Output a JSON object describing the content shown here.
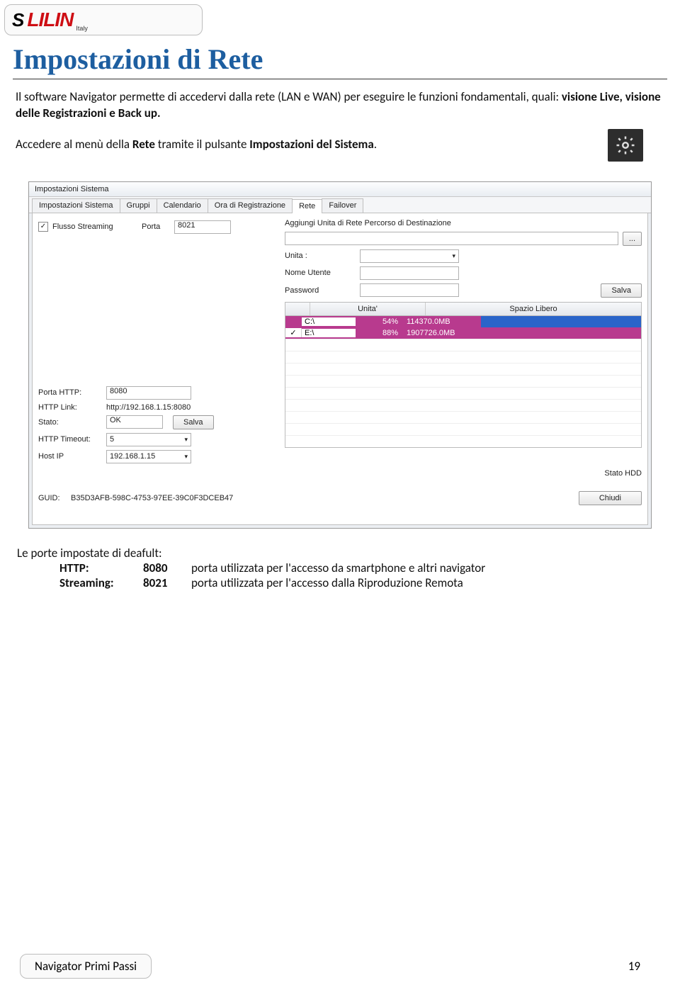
{
  "logo": {
    "brand": "LILIN",
    "country": "Italy"
  },
  "title": "Impostazioni di Rete",
  "intro": "Il software Navigator permette di accedervi dalla rete (LAN e WAN) per eseguire le funzioni fondamentali, quali: ",
  "intro_bold": "visione Live, visione delle Registrazioni e Back up.",
  "instruction_pre": "Accedere al menù della ",
  "instruction_b1": "Rete",
  "instruction_mid": " tramite il pulsante ",
  "instruction_b2": "Impostazioni del Sistema",
  "instruction_post": ".",
  "window": {
    "title": "Impostazioni Sistema",
    "tabs": [
      "Impostazioni Sistema",
      "Gruppi",
      "Calendario",
      "Ora di Registrazione",
      "Rete",
      "Failover"
    ],
    "active_tab": 4,
    "flusso_label": "Flusso Streaming",
    "flusso_checked": true,
    "porta_label": "Porta",
    "porta_value": "8021",
    "aggiungi_label": "Aggiungi Unita di Rete",
    "percorso_label": "Percorso di Destinazione",
    "percorso_value": "",
    "browse_btn": "...",
    "unita_label": "Unita :",
    "nome_utente_label": "Nome Utente",
    "password_label": "Password",
    "salva_btn": "Salva",
    "table": {
      "h1": "Unita'",
      "h2": "Spazio Libero",
      "rows": [
        {
          "chk": false,
          "drive": "C:\\",
          "pct": "54%",
          "size": "114370.0MB",
          "sel": "sel"
        },
        {
          "chk": true,
          "drive": "E:\\",
          "pct": "88%",
          "size": "1907726.0MB",
          "sel": "sel2"
        }
      ]
    },
    "porta_http_label": "Porta HTTP:",
    "porta_http_value": "8080",
    "http_link_label": "HTTP Link:",
    "http_link_value": "http://192.168.1.15:8080",
    "stato_label": "Stato:",
    "stato_value": "OK",
    "stato_salva": "Salva",
    "timeout_label": "HTTP Timeout:",
    "timeout_value": "5",
    "hostip_label": "Host IP",
    "hostip_value": "192.168.1.15",
    "stato_hdd": "Stato HDD",
    "guid_label": "GUID:",
    "guid_value": "B35D3AFB-598C-4753-97EE-39C0F3DCEB47",
    "chiudi": "Chiudi"
  },
  "ports": {
    "heading": "Le porte impostate di deafult:",
    "rows": [
      {
        "k": "HTTP:",
        "v": "8080",
        "desc": "porta utilizzata per l'accesso da smartphone e altri navigator"
      },
      {
        "k": "Streaming:",
        "v": "8021",
        "desc": "porta utilizzata per l'accesso dalla Riproduzione Remota"
      }
    ]
  },
  "footer": {
    "label": "Navigator Primi Passi",
    "page": "19"
  }
}
